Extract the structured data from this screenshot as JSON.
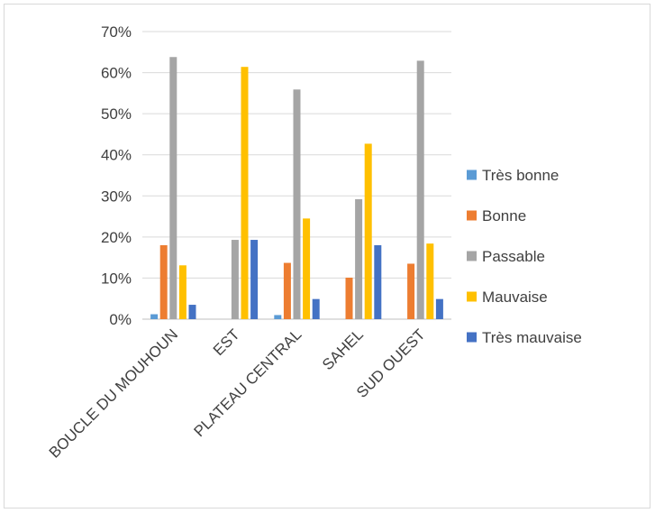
{
  "chart_data": {
    "type": "bar",
    "categories": [
      "BOUCLE DU MOUHOUN",
      "EST",
      "PLATEAU CENTRAL",
      "SAHEL",
      "SUD OUEST"
    ],
    "series": [
      {
        "name": "Très bonne",
        "color": "#5b9bd5",
        "values": [
          1.2,
          0,
          1.0,
          0,
          0
        ]
      },
      {
        "name": "Bonne",
        "color": "#ed7d31",
        "values": [
          18.0,
          0,
          13.7,
          10.1,
          13.5
        ]
      },
      {
        "name": "Passable",
        "color": "#a5a5a5",
        "values": [
          63.8,
          19.3,
          55.9,
          29.2,
          62.9
        ]
      },
      {
        "name": "Mauvaise",
        "color": "#ffc000",
        "values": [
          13.1,
          61.4,
          24.5,
          42.7,
          18.4
        ]
      },
      {
        "name": "Très mauvaise",
        "color": "#4472c4",
        "values": [
          3.5,
          19.3,
          4.9,
          18.0,
          4.9
        ]
      }
    ],
    "yticks": [
      "0%",
      "10%",
      "20%",
      "30%",
      "40%",
      "50%",
      "60%",
      "70%"
    ],
    "ylim": [
      0,
      70
    ],
    "grid": true,
    "legend_position": "right",
    "title": "",
    "xlabel": "",
    "ylabel": ""
  }
}
